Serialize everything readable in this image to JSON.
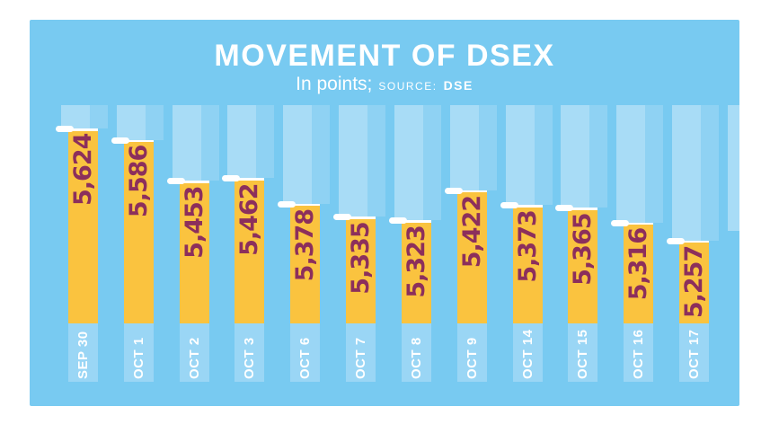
{
  "chart": {
    "title": "MOVEMENT OF DSEX",
    "subtitle": "In points;",
    "source_label": "SOURCE:",
    "source_value": "DSE",
    "colors": {
      "page_background": "#ffffff",
      "chart_background": "#78CAF1",
      "bar": "#FAC33F",
      "track": "#A8DCF6",
      "track_side": "#8FD2F3",
      "label_area": "#9AD6F5",
      "value_text": "#8C2F5C",
      "date_text": "#FFFFFF",
      "cap_marker": "#FFFFFF",
      "title_text": "#FFFFFF"
    }
  },
  "chart_data": {
    "type": "bar",
    "title": "MOVEMENT OF DSEX",
    "subtitle": "In points; SOURCE: DSE",
    "xlabel": "",
    "ylabel": "",
    "categories": [
      "SEP 30",
      "OCT 1",
      "OCT 2",
      "OCT 3",
      "OCT 6",
      "OCT 7",
      "OCT 8",
      "OCT 9",
      "OCT 14",
      "OCT 15",
      "OCT 16",
      "OCT 17"
    ],
    "values": [
      5624,
      5586,
      5453,
      5462,
      5378,
      5335,
      5323,
      5422,
      5373,
      5365,
      5316,
      5257
    ],
    "value_labels": [
      "5,624",
      "5,586",
      "5,453",
      "5,462",
      "5,378",
      "5,335",
      "5,323",
      "5,422",
      "5,373",
      "5,365",
      "5,316",
      "5,257"
    ],
    "ylim": [
      4986,
      5624
    ],
    "grid": false,
    "legend": false,
    "bar_color": "#FAC33F",
    "orientation": "vertical"
  }
}
